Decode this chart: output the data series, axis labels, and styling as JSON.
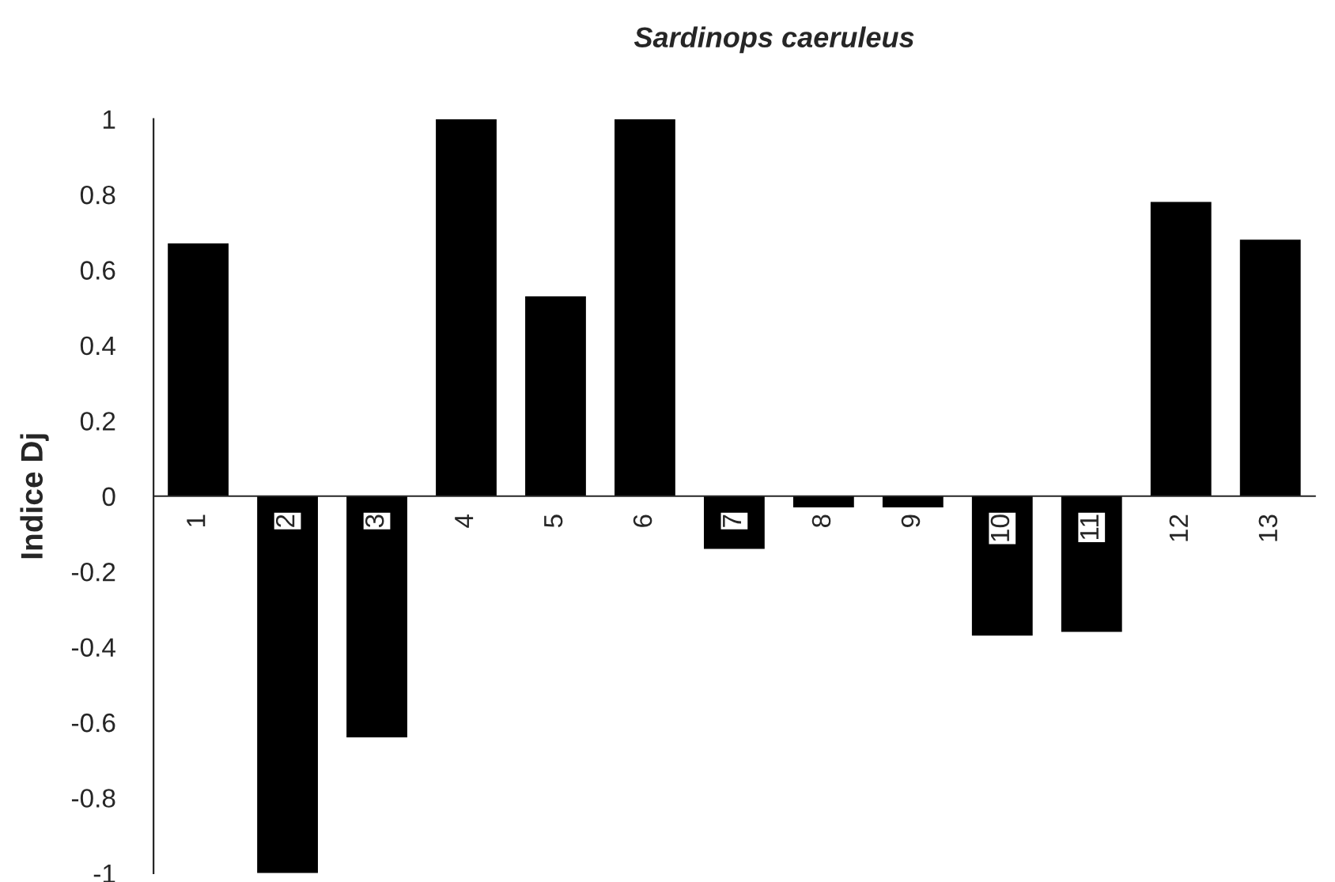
{
  "chart_data": {
    "type": "bar",
    "title": "Sardinops caeruleus",
    "ylabel": "Indice Dj",
    "categories": [
      "1",
      "2",
      "3",
      "4",
      "5",
      "6",
      "7",
      "8",
      "9",
      "10",
      "11",
      "12",
      "13"
    ],
    "values": [
      0.67,
      -1,
      -0.64,
      1,
      0.53,
      1,
      -0.14,
      -0.03,
      -0.03,
      -0.37,
      -0.36,
      0.78,
      0.68
    ],
    "color": "#000000",
    "ylim": [
      -1,
      1
    ],
    "yticks": [
      -1,
      -0.8,
      -0.6,
      -0.4,
      -0.2,
      0,
      0.2,
      0.4,
      0.6,
      0.8,
      1
    ],
    "grid": false,
    "legend": false
  }
}
